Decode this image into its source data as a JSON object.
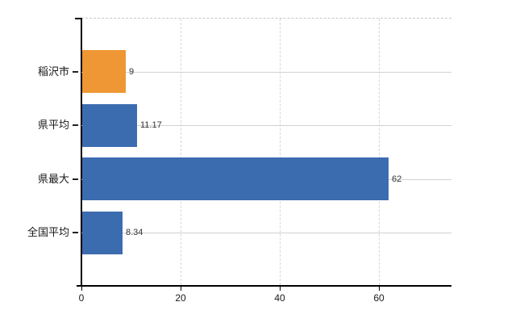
{
  "chart": {
    "background_color": "#ffffff",
    "axis_color": "#000000",
    "vertical_grid_color": "#d6d6d6",
    "category_line_color": "#d2d2d2",
    "top_border_color": "#c9c9c9",
    "value_label_color": "#333333",
    "tick_label_color": "#1a1a1a"
  },
  "chart_data": {
    "type": "bar",
    "orientation": "horizontal",
    "title": "",
    "xlabel": "",
    "ylabel": "",
    "legend": "none",
    "grid": "vertical dashed gridlines at x ticks; light horizontal line across each category row",
    "categories": [
      "稲沢市",
      "県平均",
      "県最大",
      "全国平均"
    ],
    "values": [
      9,
      11.17,
      62,
      8.34
    ],
    "value_labels": [
      "9",
      "11.17",
      "62",
      "8.34"
    ],
    "bar_colors": [
      "#ee9734",
      "#3c6cb0",
      "#3c6cb0",
      "#3c6cb0"
    ],
    "highlight_color": "#ee9734",
    "default_bar_color": "#3c6cb0",
    "xlim": [
      0,
      74.6
    ],
    "xticks": [
      0,
      20,
      40,
      60
    ],
    "xtick_labels": [
      "0",
      "20",
      "40",
      "60"
    ]
  }
}
